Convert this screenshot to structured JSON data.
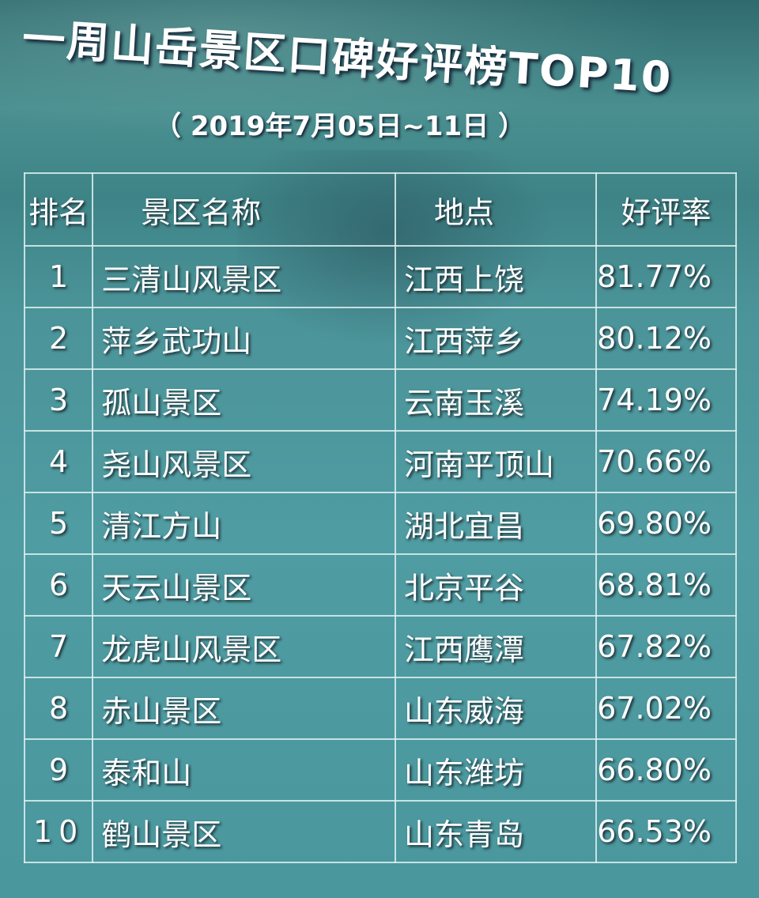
{
  "title": "一周山岳景区口碑好评榜TOP10",
  "subtitle": "（ 2019年7月05日~11日 ）",
  "chart_data": {
    "type": "table",
    "columns": [
      "排名",
      "景区名称",
      "地点",
      "好评率"
    ],
    "rows": [
      [
        "1",
        "三清山风景区",
        "江西上饶",
        "81.77%"
      ],
      [
        "2",
        "萍乡武功山",
        "江西萍乡",
        "80.12%"
      ],
      [
        "3",
        "孤山景区",
        "云南玉溪",
        "74.19%"
      ],
      [
        "4",
        "尧山风景区",
        "河南平顶山",
        "70.66%"
      ],
      [
        "5",
        "清江方山",
        "湖北宜昌",
        "69.80%"
      ],
      [
        "6",
        "天云山景区",
        "北京平谷",
        "68.81%"
      ],
      [
        "7",
        "龙虎山风景区",
        "江西鹰潭",
        "67.82%"
      ],
      [
        "8",
        "赤山景区",
        "山东威海",
        "67.02%"
      ],
      [
        "9",
        "泰和山",
        "山东潍坊",
        "66.80%"
      ],
      [
        "10",
        "鹤山景区",
        "山东青岛",
        "66.53%"
      ]
    ]
  }
}
